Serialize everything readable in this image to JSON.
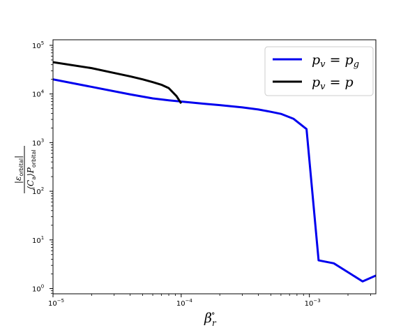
{
  "chart_data": {
    "type": "line",
    "title": "",
    "xlabel": "β_r°",
    "ylabel": "|ε_orbital| / (⟨C_a⟩ P_orbital)",
    "xscale": "log",
    "yscale": "log",
    "xlim": [
      1e-05,
      0.0033
    ],
    "ylim": [
      0.78,
      130000
    ],
    "grid": false,
    "legend_position": "top-right",
    "x_ticks": [
      {
        "value": 1e-05,
        "base": "10",
        "exp": "−5"
      },
      {
        "value": 0.0001,
        "base": "10",
        "exp": "−4"
      },
      {
        "value": 0.001,
        "base": "10",
        "exp": "−3"
      }
    ],
    "y_ticks": [
      {
        "value": 1,
        "base": "10",
        "exp": "0"
      },
      {
        "value": 10,
        "base": "10",
        "exp": "1"
      },
      {
        "value": 100,
        "base": "10",
        "exp": "2"
      },
      {
        "value": 1000,
        "base": "10",
        "exp": "3"
      },
      {
        "value": 10000,
        "base": "10",
        "exp": "4"
      },
      {
        "value": 100000,
        "base": "10",
        "exp": "5"
      }
    ],
    "series": [
      {
        "name": "p_v = p_g",
        "color": "#0000ee",
        "points": [
          [
            1e-05,
            20000
          ],
          [
            2e-05,
            14000
          ],
          [
            4e-05,
            9800
          ],
          [
            6e-05,
            8100
          ],
          [
            8e-05,
            7400
          ],
          [
            0.0001,
            7000
          ],
          [
            0.00015,
            6300
          ],
          [
            0.0002,
            5900
          ],
          [
            0.0003,
            5300
          ],
          [
            0.0004,
            4800
          ],
          [
            0.0005,
            4300
          ],
          [
            0.0006,
            3900
          ],
          [
            0.00075,
            3100
          ],
          [
            0.00095,
            1900
          ],
          [
            0.00118,
            3.8
          ],
          [
            0.00155,
            3.3
          ],
          [
            0.0021,
            2.0
          ],
          [
            0.0026,
            1.4
          ],
          [
            0.0033,
            1.85
          ]
        ]
      },
      {
        "name": "p_v = p",
        "color": "#000000",
        "points": [
          [
            1e-05,
            45000
          ],
          [
            2e-05,
            34000
          ],
          [
            3e-05,
            27000
          ],
          [
            4e-05,
            23000
          ],
          [
            5e-05,
            20000
          ],
          [
            6e-05,
            17500
          ],
          [
            7e-05,
            15500
          ],
          [
            8e-05,
            13200
          ],
          [
            9.2e-05,
            9000
          ],
          [
            0.0001,
            6400
          ]
        ]
      }
    ],
    "legend": [
      {
        "main": "p",
        "sub": "v",
        "eq": " = ",
        "rhs": "p",
        "rhs_sub": "g",
        "color": "#0000ee"
      },
      {
        "main": "p",
        "sub": "v",
        "eq": " = ",
        "rhs": "p",
        "rhs_sub": "",
        "color": "#000000"
      }
    ],
    "axis_text": {
      "x_main": "β",
      "x_sub": "r",
      "x_sup": "∘",
      "y_num_main": "|ε",
      "y_num_sub": "orbital",
      "y_num_close": "|",
      "y_den_main": "⟨C",
      "y_den_sub": "a",
      "y_den_mid": "⟩P",
      "y_den_sub2": "orbital"
    }
  }
}
